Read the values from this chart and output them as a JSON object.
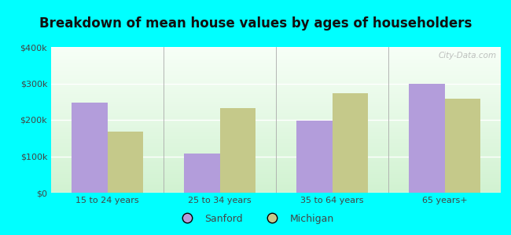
{
  "title": "Breakdown of mean house values by ages of householders",
  "categories": [
    "15 to 24 years",
    "25 to 34 years",
    "35 to 64 years",
    "65 years+"
  ],
  "sanford_values": [
    248000,
    107000,
    198000,
    300000
  ],
  "michigan_values": [
    168000,
    233000,
    273000,
    258000
  ],
  "sanford_color": "#b39ddb",
  "michigan_color": "#c5c98a",
  "ylim": [
    0,
    400000
  ],
  "yticks": [
    0,
    100000,
    200000,
    300000,
    400000
  ],
  "ytick_labels": [
    "$0",
    "$100k",
    "$200k",
    "$300k",
    "$400k"
  ],
  "background_color": "#00ffff",
  "legend_labels": [
    "Sanford",
    "Michigan"
  ],
  "bar_width": 0.32,
  "title_fontsize": 12,
  "watermark": "City-Data.com"
}
